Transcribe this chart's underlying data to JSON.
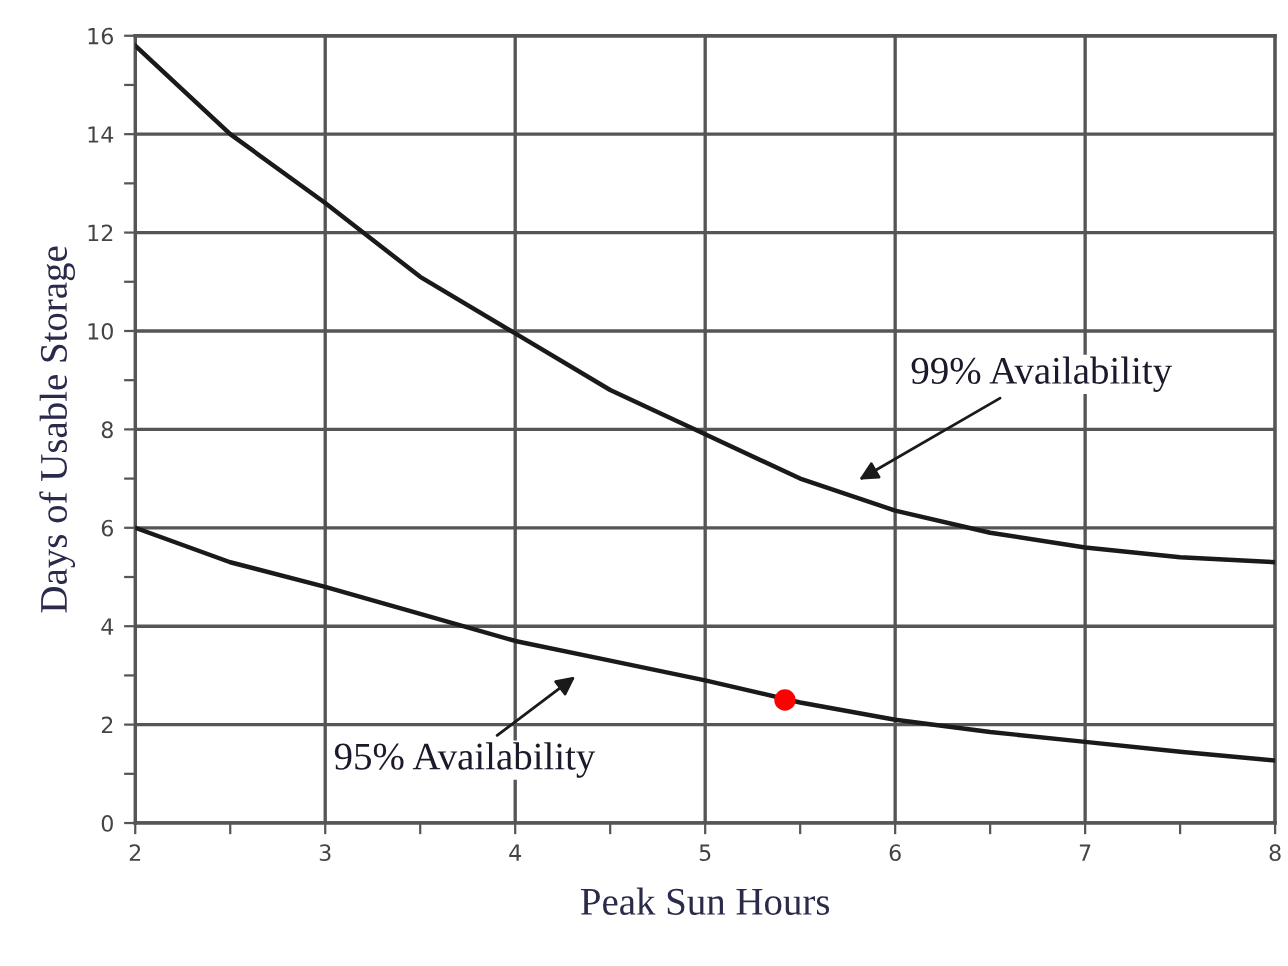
{
  "chart_data": {
    "type": "line",
    "xlabel": "Peak Sun Hours",
    "ylabel": "Days of Usable Storage",
    "xlim": [
      2,
      8
    ],
    "ylim": [
      0,
      16
    ],
    "xticks": [
      2,
      {
        "value": 2.5,
        "label": null
      },
      3,
      {
        "value": 3.5,
        "label": null
      },
      4,
      {
        "value": 4.5,
        "label": null
      },
      5,
      {
        "value": 5.5,
        "label": null
      },
      6,
      {
        "value": 6.5,
        "label": null
      },
      7,
      {
        "value": 7.5,
        "label": null
      },
      8
    ],
    "yticks": [
      0,
      {
        "value": 1,
        "label": null
      },
      2,
      {
        "value": 3,
        "label": null
      },
      4,
      {
        "value": 5,
        "label": null
      },
      6,
      {
        "value": 7,
        "label": null
      },
      8,
      {
        "value": 9,
        "label": null
      },
      10,
      {
        "value": 11,
        "label": null
      },
      12,
      {
        "value": 13,
        "label": null
      },
      14,
      {
        "value": 15,
        "label": null
      },
      16
    ],
    "grid": true,
    "marker": "none",
    "line_style": "solid",
    "series": [
      {
        "color": "#1a1a1a",
        "x": [
          2,
          2.5,
          3,
          3.5,
          4,
          4.5,
          5,
          5.5,
          6,
          6.5,
          7,
          7.5,
          8
        ],
        "values": [
          15.8,
          14.0,
          12.6,
          11.1,
          9.95,
          8.8,
          7.9,
          7.0,
          6.35,
          5.9,
          5.6,
          5.4,
          5.3
        ]
      },
      {
        "color": "#1a1a1a",
        "x": [
          2,
          2.5,
          3,
          3.5,
          4,
          4.5,
          5,
          5.5,
          6,
          6.5,
          7,
          7.5,
          8
        ],
        "values": [
          6.0,
          5.3,
          4.8,
          4.25,
          3.7,
          3.3,
          2.9,
          2.45,
          2.1,
          1.85,
          1.65,
          1.45,
          1.27
        ]
      },
      {
        "type": "scatter",
        "color": "#ff0000",
        "marker": "circle",
        "x": [
          5.42
        ],
        "values": [
          2.5
        ]
      }
    ],
    "annotations": [
      "99% Availability",
      "95% Availability"
    ]
  }
}
